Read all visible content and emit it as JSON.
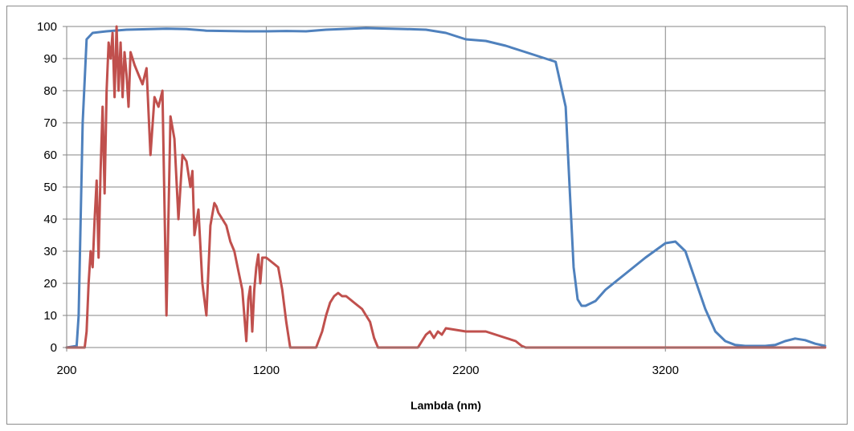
{
  "chart_data": {
    "type": "line",
    "title": "",
    "xlabel": "Lambda (nm)",
    "ylabel": "",
    "xlim": [
      200,
      4000
    ],
    "ylim": [
      0,
      100
    ],
    "x_ticks": [
      200,
      1200,
      2200,
      3200
    ],
    "y_ticks": [
      0,
      10,
      20,
      30,
      40,
      50,
      60,
      70,
      80,
      90,
      100
    ],
    "grid": true,
    "legend": "none",
    "series": [
      {
        "color": "#4F81BD",
        "x": [
          200,
          250,
          260,
          280,
          300,
          330,
          400,
          500,
          700,
          800,
          900,
          1000,
          1100,
          1200,
          1300,
          1400,
          1500,
          1700,
          1900,
          2000,
          2100,
          2200,
          2300,
          2400,
          2500,
          2600,
          2650,
          2700,
          2720,
          2740,
          2760,
          2780,
          2800,
          2850,
          2900,
          3000,
          3100,
          3200,
          3250,
          3300,
          3350,
          3400,
          3450,
          3500,
          3550,
          3600,
          3650,
          3700,
          3750,
          3800,
          3850,
          3900,
          3950,
          4000
        ],
        "y": [
          0,
          0.5,
          10,
          70,
          96,
          98,
          98.5,
          99,
          99.3,
          99.2,
          98.7,
          98.6,
          98.5,
          98.5,
          98.6,
          98.5,
          99,
          99.5,
          99.2,
          99,
          98,
          96,
          95.5,
          94,
          92,
          90,
          89,
          75,
          50,
          25,
          15,
          13,
          13,
          14.5,
          18,
          23,
          28,
          32.5,
          33,
          30,
          21,
          12,
          5,
          2,
          0.8,
          0.5,
          0.5,
          0.5,
          0.8,
          2,
          2.8,
          2.3,
          1.2,
          0.5
        ]
      },
      {
        "color": "#C0504D",
        "x": [
          200,
          290,
          300,
          310,
          320,
          330,
          340,
          350,
          360,
          370,
          380,
          390,
          400,
          410,
          420,
          430,
          440,
          450,
          460,
          470,
          480,
          490,
          500,
          510,
          520,
          540,
          560,
          580,
          600,
          620,
          640,
          660,
          680,
          700,
          720,
          740,
          760,
          780,
          800,
          820,
          830,
          840,
          860,
          880,
          900,
          920,
          940,
          950,
          960,
          980,
          1000,
          1020,
          1040,
          1060,
          1080,
          1090,
          1100,
          1110,
          1120,
          1130,
          1140,
          1150,
          1160,
          1170,
          1180,
          1200,
          1220,
          1240,
          1260,
          1280,
          1300,
          1320,
          1340,
          1360,
          1380,
          1400,
          1450,
          1480,
          1500,
          1520,
          1540,
          1560,
          1580,
          1600,
          1620,
          1640,
          1660,
          1680,
          1700,
          1720,
          1740,
          1760,
          1780,
          1800,
          1820,
          1840,
          1860,
          1880,
          1900,
          1960,
          2000,
          2020,
          2040,
          2060,
          2080,
          2100,
          2200,
          2300,
          2400,
          2450,
          2480,
          2500,
          2600,
          3000,
          3300,
          3600,
          4000
        ],
        "y": [
          0,
          0,
          5,
          20,
          30,
          25,
          40,
          52,
          28,
          55,
          75,
          48,
          80,
          95,
          90,
          98,
          78,
          100,
          80,
          95,
          78,
          92,
          85,
          75,
          92,
          88,
          85,
          82,
          87,
          60,
          78,
          75,
          80,
          10,
          72,
          65,
          40,
          60,
          58,
          50,
          55,
          35,
          43,
          20,
          10,
          38,
          45,
          44,
          42,
          40,
          38,
          33,
          30,
          24,
          18,
          10,
          2,
          15,
          19,
          5,
          18,
          25,
          29,
          20,
          28,
          28,
          27,
          26,
          25,
          18,
          8,
          0,
          0,
          0,
          0,
          0,
          0,
          5,
          10,
          14,
          16,
          17,
          16,
          16,
          15,
          14,
          13,
          12,
          10,
          8,
          3,
          0,
          0,
          0,
          0,
          0,
          0,
          0,
          0,
          0,
          4,
          5,
          3,
          5,
          4,
          6,
          5,
          5,
          3,
          2,
          0.5,
          0,
          0,
          0,
          0,
          0,
          0
        ]
      }
    ]
  }
}
